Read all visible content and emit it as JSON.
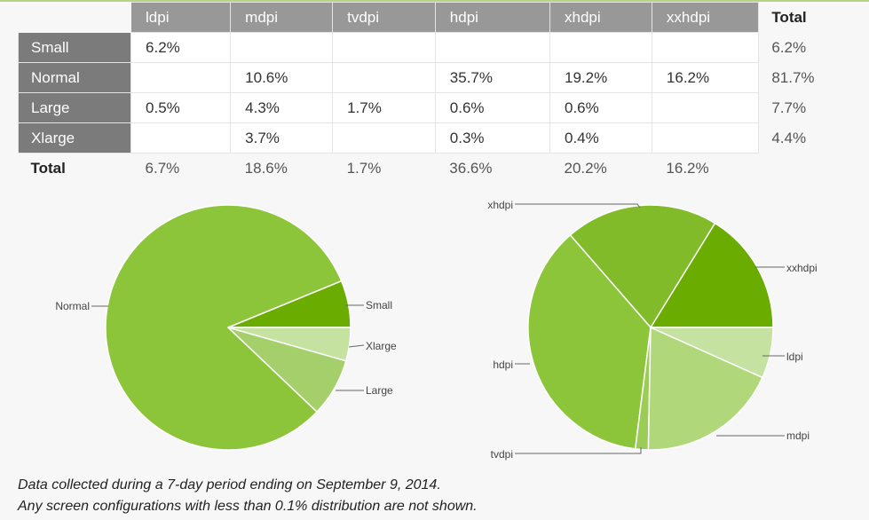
{
  "table": {
    "columns": [
      "ldpi",
      "mdpi",
      "tvdpi",
      "hdpi",
      "xhdpi",
      "xxhdpi"
    ],
    "total_header": "Total",
    "rows": [
      {
        "label": "Small",
        "cells": [
          "6.2%",
          "",
          "",
          "",
          "",
          ""
        ],
        "total": "6.2%"
      },
      {
        "label": "Normal",
        "cells": [
          "",
          "10.6%",
          "",
          "35.7%",
          "19.2%",
          "16.2%"
        ],
        "total": "81.7%"
      },
      {
        "label": "Large",
        "cells": [
          "0.5%",
          "4.3%",
          "1.7%",
          "0.6%",
          "0.6%",
          ""
        ],
        "total": "7.7%"
      },
      {
        "label": "Xlarge",
        "cells": [
          "",
          "3.7%",
          "",
          "0.3%",
          "0.4%",
          ""
        ],
        "total": "4.4%"
      }
    ],
    "total_row": {
      "label": "Total",
      "cells": [
        "6.7%",
        "18.6%",
        "1.7%",
        "36.6%",
        "20.2%",
        "16.2%"
      ]
    }
  },
  "chart_data": [
    {
      "type": "pie",
      "categories": [
        "Small",
        "Normal",
        "Large",
        "Xlarge"
      ],
      "values": [
        6.2,
        81.7,
        7.7,
        4.4
      ],
      "colors": [
        "#6aac00",
        "#8cc43a",
        "#a4cf6a",
        "#c6e2a0"
      ]
    },
    {
      "type": "pie",
      "categories": [
        "ldpi",
        "mdpi",
        "tvdpi",
        "hdpi",
        "xhdpi",
        "xxhdpi"
      ],
      "values": [
        6.7,
        18.6,
        1.7,
        36.6,
        20.2,
        16.2
      ],
      "colors": [
        "#c6e2a0",
        "#b0d87a",
        "#9bcc57",
        "#8cc43a",
        "#82bb2a",
        "#6aac00"
      ]
    }
  ],
  "notes": [
    "Data collected during a 7-day period ending on September 9, 2014.",
    "Any screen configurations with less than 0.1% distribution are not shown."
  ]
}
